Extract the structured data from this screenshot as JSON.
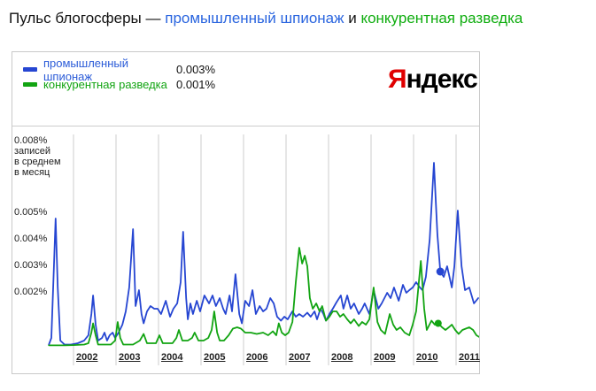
{
  "page": {
    "title_prefix": "Пульс блогосферы — ",
    "term1": "промышленный шпионаж",
    "term1_color": "#2a65df",
    "conjunction": " и ",
    "term2": "конкурентная разведка",
    "term2_color": "#0fad0f"
  },
  "logo": {
    "first_letter": "Я",
    "rest": "ндекс",
    "first_letter_color": "#e00000"
  },
  "legend": [
    {
      "label": "промышленный шпионаж",
      "value": "0.003%",
      "color": "#2646d2",
      "label_color": "#2c5cd8"
    },
    {
      "label": "конкурентная разведка",
      "value": "0.001%",
      "color": "#12a412",
      "label_color": "#12a412"
    }
  ],
  "chart_data": {
    "type": "line",
    "title": "Пульс блогосферы — промышленный шпионаж и конкурентная разведка",
    "ylabel": "% записей в среднем в месяц",
    "unit_caption": [
      "записей",
      "в среднем",
      "в месяц"
    ],
    "x_ticks": [
      "2002",
      "2003",
      "2004",
      "2005",
      "2006",
      "2007",
      "2008",
      "2009",
      "2010",
      "2011"
    ],
    "y_ticks": [
      {
        "label": "0.008%",
        "value": 0.008,
        "caption": [
          "записей",
          "в среднем",
          "в месяц"
        ]
      },
      {
        "label": "0.005%",
        "value": 0.005
      },
      {
        "label": "0.004%",
        "value": 0.004
      },
      {
        "label": "0.003%",
        "value": 0.003
      },
      {
        "label": "0.002%",
        "value": 0.002
      }
    ],
    "x_range": [
      2001.4,
      2011.6
    ],
    "ylim": [
      0,
      0.008
    ],
    "grid": "vertical-only",
    "grid_color": "#cccccc",
    "legend_position": "top-left",
    "series": [
      {
        "name": "промышленный шпионаж",
        "color": "#2646d2",
        "current_value": "0.003%",
        "marker": [
          2010.63,
          0.0028
        ],
        "points": [
          [
            2001.42,
            5e-05
          ],
          [
            2001.48,
            0.0003
          ],
          [
            2001.54,
            0.003
          ],
          [
            2001.58,
            0.0048
          ],
          [
            2001.63,
            0.0022
          ],
          [
            2001.69,
            0.0002
          ],
          [
            2001.79,
            5e-05
          ],
          [
            2001.94,
            5e-05
          ],
          [
            2002.1,
            0.0001
          ],
          [
            2002.25,
            0.0002
          ],
          [
            2002.35,
            0.0004
          ],
          [
            2002.42,
            0.0012
          ],
          [
            2002.46,
            0.0019
          ],
          [
            2002.52,
            0.0008
          ],
          [
            2002.58,
            0.0002
          ],
          [
            2002.67,
            0.0003
          ],
          [
            2002.73,
            0.0005
          ],
          [
            2002.79,
            0.0002
          ],
          [
            2002.85,
            0.0004
          ],
          [
            2002.92,
            0.0005
          ],
          [
            2002.98,
            0.0003
          ],
          [
            2003.06,
            0.0005
          ],
          [
            2003.15,
            0.0008
          ],
          [
            2003.23,
            0.0013
          ],
          [
            2003.31,
            0.0022
          ],
          [
            2003.4,
            0.0044
          ],
          [
            2003.46,
            0.0015
          ],
          [
            2003.54,
            0.0021
          ],
          [
            2003.6,
            0.0012
          ],
          [
            2003.65,
            0.00085
          ],
          [
            2003.73,
            0.0013
          ],
          [
            2003.81,
            0.0015
          ],
          [
            2003.9,
            0.0014
          ],
          [
            2003.98,
            0.0014
          ],
          [
            2004.06,
            0.0012
          ],
          [
            2004.17,
            0.0017
          ],
          [
            2004.27,
            0.0011
          ],
          [
            2004.35,
            0.0014
          ],
          [
            2004.44,
            0.0016
          ],
          [
            2004.52,
            0.0024
          ],
          [
            2004.58,
            0.0043
          ],
          [
            2004.65,
            0.0018
          ],
          [
            2004.69,
            0.001
          ],
          [
            2004.75,
            0.0016
          ],
          [
            2004.81,
            0.0012
          ],
          [
            2004.9,
            0.0017
          ],
          [
            2004.98,
            0.0013
          ],
          [
            2005.08,
            0.0019
          ],
          [
            2005.19,
            0.0016
          ],
          [
            2005.27,
            0.0019
          ],
          [
            2005.35,
            0.0015
          ],
          [
            2005.44,
            0.0018
          ],
          [
            2005.52,
            0.0014
          ],
          [
            2005.58,
            0.0012
          ],
          [
            2005.67,
            0.0019
          ],
          [
            2005.73,
            0.0013
          ],
          [
            2005.81,
            0.0027
          ],
          [
            2005.9,
            0.0012
          ],
          [
            2005.96,
            0.00085
          ],
          [
            2006.04,
            0.0017
          ],
          [
            2006.13,
            0.0015
          ],
          [
            2006.21,
            0.0021
          ],
          [
            2006.29,
            0.0012
          ],
          [
            2006.38,
            0.0015
          ],
          [
            2006.46,
            0.0013
          ],
          [
            2006.54,
            0.0014
          ],
          [
            2006.63,
            0.0018
          ],
          [
            2006.71,
            0.0016
          ],
          [
            2006.79,
            0.0011
          ],
          [
            2006.88,
            0.00095
          ],
          [
            2006.96,
            0.0011
          ],
          [
            2007.04,
            0.001
          ],
          [
            2007.15,
            0.0013
          ],
          [
            2007.23,
            0.0011
          ],
          [
            2007.31,
            0.0012
          ],
          [
            2007.4,
            0.0011
          ],
          [
            2007.5,
            0.00125
          ],
          [
            2007.58,
            0.0011
          ],
          [
            2007.67,
            0.0013
          ],
          [
            2007.73,
            0.001
          ],
          [
            2007.81,
            0.0014
          ],
          [
            2007.88,
            0.0012
          ],
          [
            2007.94,
            0.00095
          ],
          [
            2008.02,
            0.0012
          ],
          [
            2008.1,
            0.0014
          ],
          [
            2008.19,
            0.00165
          ],
          [
            2008.29,
            0.0019
          ],
          [
            2008.35,
            0.0014
          ],
          [
            2008.44,
            0.0019
          ],
          [
            2008.52,
            0.0014
          ],
          [
            2008.6,
            0.0016
          ],
          [
            2008.71,
            0.0012
          ],
          [
            2008.79,
            0.0014
          ],
          [
            2008.85,
            0.0016
          ],
          [
            2008.96,
            0.0012
          ],
          [
            2009.06,
            0.0021
          ],
          [
            2009.17,
            0.0014
          ],
          [
            2009.25,
            0.0016
          ],
          [
            2009.38,
            0.002
          ],
          [
            2009.46,
            0.0018
          ],
          [
            2009.54,
            0.0022
          ],
          [
            2009.65,
            0.0017
          ],
          [
            2009.75,
            0.0023
          ],
          [
            2009.83,
            0.002
          ],
          [
            2009.9,
            0.0021
          ],
          [
            2009.98,
            0.0022
          ],
          [
            2010.06,
            0.0024
          ],
          [
            2010.15,
            0.0022
          ],
          [
            2010.21,
            0.0021
          ],
          [
            2010.29,
            0.0026
          ],
          [
            2010.38,
            0.004
          ],
          [
            2010.48,
            0.0069
          ],
          [
            2010.56,
            0.0042
          ],
          [
            2010.63,
            0.0028
          ],
          [
            2010.71,
            0.0026
          ],
          [
            2010.79,
            0.003
          ],
          [
            2010.9,
            0.0022
          ],
          [
            2010.96,
            0.003
          ],
          [
            2011.04,
            0.0051
          ],
          [
            2011.13,
            0.003
          ],
          [
            2011.21,
            0.0021
          ],
          [
            2011.31,
            0.0022
          ],
          [
            2011.42,
            0.0016
          ],
          [
            2011.52,
            0.0018
          ]
        ]
      },
      {
        "name": "конкурентная разведка",
        "color": "#12a412",
        "current_value": "0.001%",
        "marker": [
          2010.58,
          0.00085
        ],
        "points": [
          [
            2001.42,
            2e-05
          ],
          [
            2001.6,
            2e-05
          ],
          [
            2001.8,
            2e-05
          ],
          [
            2002.0,
            3e-05
          ],
          [
            2002.25,
            5e-05
          ],
          [
            2002.35,
            0.0001
          ],
          [
            2002.42,
            0.0005
          ],
          [
            2002.46,
            0.00085
          ],
          [
            2002.52,
            0.0004
          ],
          [
            2002.58,
            5e-05
          ],
          [
            2002.88,
            5e-05
          ],
          [
            2002.98,
            0.0002
          ],
          [
            2003.04,
            0.0009
          ],
          [
            2003.1,
            0.0003
          ],
          [
            2003.17,
            5e-05
          ],
          [
            2003.4,
            5e-05
          ],
          [
            2003.56,
            0.0002
          ],
          [
            2003.65,
            0.00045
          ],
          [
            2003.73,
            0.0001
          ],
          [
            2003.94,
            0.0001
          ],
          [
            2004.02,
            0.0004
          ],
          [
            2004.1,
            0.0001
          ],
          [
            2004.33,
            0.0001
          ],
          [
            2004.42,
            0.0003
          ],
          [
            2004.48,
            0.0006
          ],
          [
            2004.56,
            0.0002
          ],
          [
            2004.69,
            0.0002
          ],
          [
            2004.79,
            0.0003
          ],
          [
            2004.85,
            0.0005
          ],
          [
            2004.94,
            0.0002
          ],
          [
            2005.06,
            0.0002
          ],
          [
            2005.17,
            0.0003
          ],
          [
            2005.25,
            0.0006
          ],
          [
            2005.31,
            0.0013
          ],
          [
            2005.38,
            0.0005
          ],
          [
            2005.44,
            0.0002
          ],
          [
            2005.54,
            0.0002
          ],
          [
            2005.65,
            0.0004
          ],
          [
            2005.75,
            0.00065
          ],
          [
            2005.85,
            0.0007
          ],
          [
            2005.94,
            0.00065
          ],
          [
            2006.04,
            0.0005
          ],
          [
            2006.17,
            0.0005
          ],
          [
            2006.31,
            0.00045
          ],
          [
            2006.46,
            0.0005
          ],
          [
            2006.58,
            0.0004
          ],
          [
            2006.69,
            0.00055
          ],
          [
            2006.77,
            0.0004
          ],
          [
            2006.83,
            0.00085
          ],
          [
            2006.9,
            0.0005
          ],
          [
            2006.98,
            0.0004
          ],
          [
            2007.06,
            0.0005
          ],
          [
            2007.15,
            0.0009
          ],
          [
            2007.23,
            0.0024
          ],
          [
            2007.31,
            0.0037
          ],
          [
            2007.38,
            0.0031
          ],
          [
            2007.44,
            0.0034
          ],
          [
            2007.5,
            0.003
          ],
          [
            2007.56,
            0.0018
          ],
          [
            2007.63,
            0.0014
          ],
          [
            2007.71,
            0.0016
          ],
          [
            2007.79,
            0.0013
          ],
          [
            2007.85,
            0.0015
          ],
          [
            2007.94,
            0.00095
          ],
          [
            2008.02,
            0.0011
          ],
          [
            2008.1,
            0.0013
          ],
          [
            2008.19,
            0.0013
          ],
          [
            2008.27,
            0.0011
          ],
          [
            2008.35,
            0.0012
          ],
          [
            2008.44,
            0.001
          ],
          [
            2008.52,
            0.00085
          ],
          [
            2008.6,
            0.001
          ],
          [
            2008.71,
            0.00075
          ],
          [
            2008.79,
            0.0009
          ],
          [
            2008.88,
            0.0008
          ],
          [
            2008.96,
            0.001
          ],
          [
            2009.06,
            0.0022
          ],
          [
            2009.15,
            0.0009
          ],
          [
            2009.23,
            0.0006
          ],
          [
            2009.33,
            0.00045
          ],
          [
            2009.44,
            0.0012
          ],
          [
            2009.52,
            0.0008
          ],
          [
            2009.6,
            0.0006
          ],
          [
            2009.69,
            0.0007
          ],
          [
            2009.79,
            0.0005
          ],
          [
            2009.9,
            0.0004
          ],
          [
            2009.98,
            0.0008
          ],
          [
            2010.06,
            0.0013
          ],
          [
            2010.17,
            0.0032
          ],
          [
            2010.25,
            0.0014
          ],
          [
            2010.31,
            0.0006
          ],
          [
            2010.42,
            0.00095
          ],
          [
            2010.5,
            0.0008
          ],
          [
            2010.58,
            0.00085
          ],
          [
            2010.67,
            0.0007
          ],
          [
            2010.75,
            0.0006
          ],
          [
            2010.83,
            0.0007
          ],
          [
            2010.9,
            0.0008
          ],
          [
            2010.98,
            0.0006
          ],
          [
            2011.06,
            0.00045
          ],
          [
            2011.15,
            0.0006
          ],
          [
            2011.23,
            0.00065
          ],
          [
            2011.31,
            0.0007
          ],
          [
            2011.4,
            0.0006
          ],
          [
            2011.48,
            0.0004
          ],
          [
            2011.58,
            0.0003
          ]
        ]
      }
    ]
  }
}
